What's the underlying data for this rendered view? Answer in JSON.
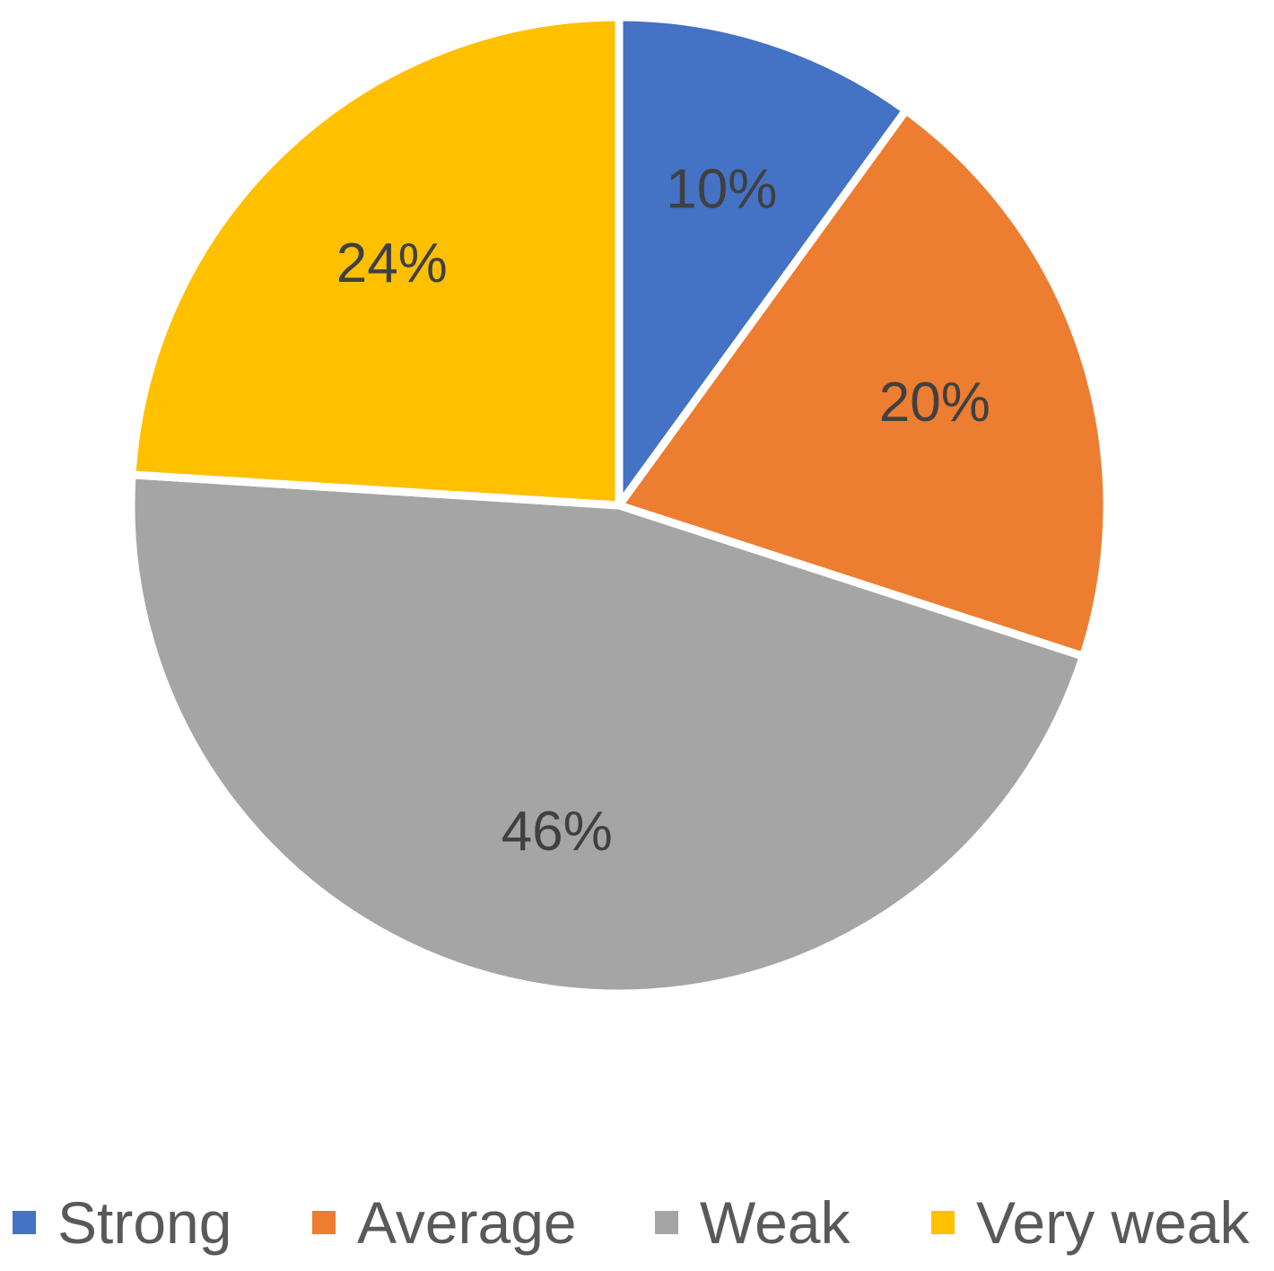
{
  "chart_data": {
    "type": "pie",
    "title": "",
    "categories": [
      "Strong",
      "Average",
      "Weak",
      "Very weak"
    ],
    "values": [
      10,
      20,
      46,
      24
    ],
    "value_labels": [
      "10%",
      "20%",
      "46%",
      "24%"
    ],
    "colors": [
      "#4472C4",
      "#ED7D31",
      "#A5A5A5",
      "#FFC000"
    ],
    "start_angle_deg": 0,
    "direction": "clockwise",
    "legend": {
      "position": "bottom",
      "items": [
        {
          "label": "Strong",
          "color": "#4472C4"
        },
        {
          "label": "Average",
          "color": "#ED7D31"
        },
        {
          "label": "Weak",
          "color": "#A5A5A5"
        },
        {
          "label": "Very weak",
          "color": "#FFC000"
        }
      ]
    }
  }
}
